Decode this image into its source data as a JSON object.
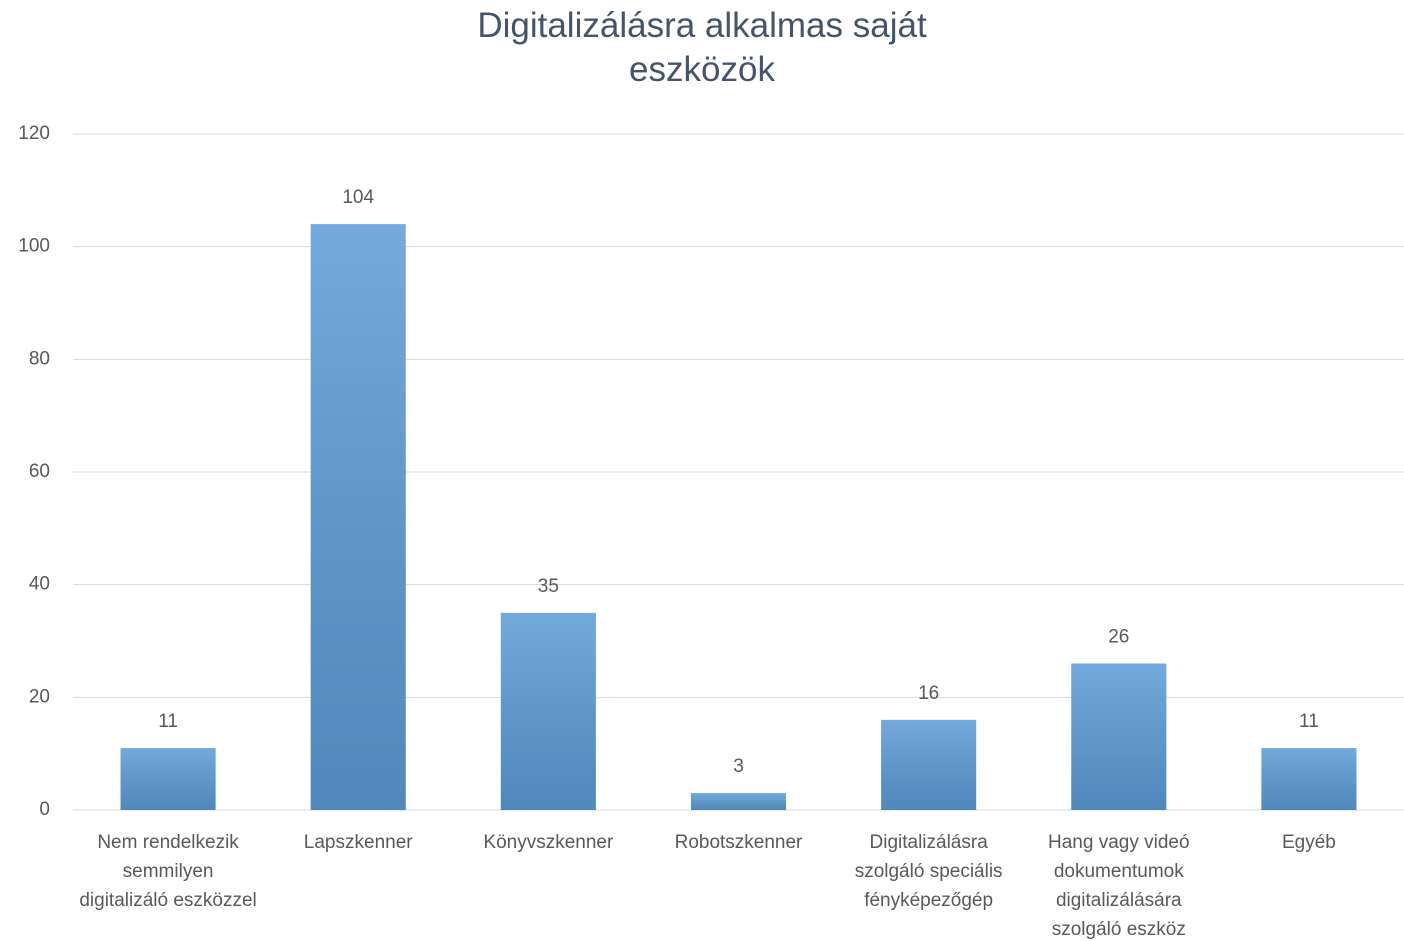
{
  "chart_data": {
    "type": "bar",
    "title": "Digitalizálásra alkalmas saját eszközök",
    "categories": [
      "Nem rendelkezik semmilyen digitalizáló eszközzel",
      "Lapszkenner",
      "Könyvszkenner",
      "Robotszkenner",
      "Digitalizálásra szolgáló speciális fényképezőgép",
      "Hang vagy videó dokumentumok digitalizálására szolgáló eszköz",
      "Egyéb"
    ],
    "values": [
      11,
      104,
      35,
      3,
      16,
      26,
      11
    ],
    "color": "#5b9bd5",
    "ylim": [
      0,
      120
    ],
    "yticks": [
      0,
      20,
      40,
      60,
      80,
      100,
      120
    ],
    "grid": true
  }
}
